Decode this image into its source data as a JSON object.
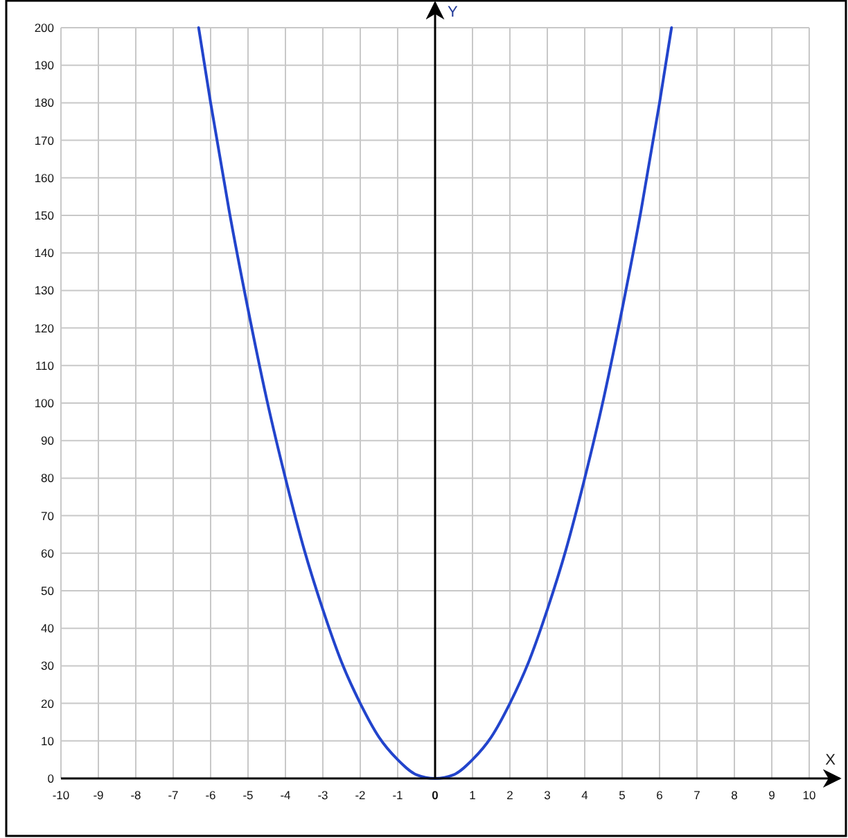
{
  "chart_data": {
    "type": "line",
    "xlabel": "X",
    "ylabel": "Y",
    "xlim": [
      -10,
      10
    ],
    "ylim": [
      0,
      200
    ],
    "xticks": [
      -10,
      -9,
      -8,
      -7,
      -6,
      -5,
      -4,
      -3,
      -2,
      -1,
      0,
      1,
      2,
      3,
      4,
      5,
      6,
      7,
      8,
      9,
      10
    ],
    "yticks": [
      0,
      10,
      20,
      30,
      40,
      50,
      60,
      70,
      80,
      90,
      100,
      110,
      120,
      130,
      140,
      150,
      160,
      170,
      180,
      190,
      200
    ],
    "grid": true,
    "marker": "none",
    "line_style": "solid",
    "series": [
      {
        "color": "#2244cc",
        "x": [
          -6.32,
          -6,
          -5.5,
          -5,
          -4.5,
          -4,
          -3.5,
          -3,
          -2.5,
          -2,
          -1.5,
          -1,
          -0.5,
          0,
          0.5,
          1,
          1.5,
          2,
          2.5,
          3,
          3.5,
          4,
          4.5,
          5,
          5.5,
          6,
          6.32
        ],
        "values": [
          200,
          180,
          151,
          125,
          101,
          80,
          61,
          45,
          31,
          20,
          11,
          5,
          1,
          0,
          1,
          5,
          11,
          20,
          31,
          45,
          61,
          80,
          101,
          125,
          151,
          180,
          200
        ]
      }
    ]
  }
}
